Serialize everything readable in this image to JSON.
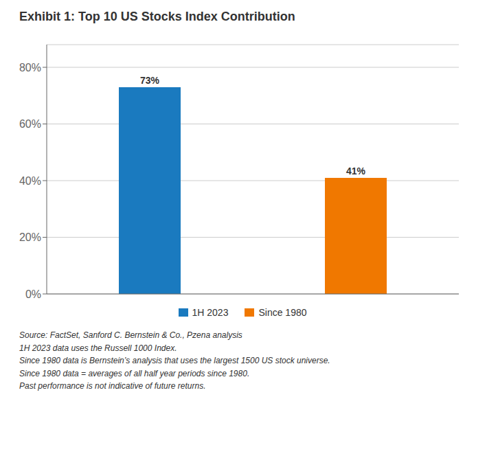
{
  "chart_data": {
    "type": "bar",
    "title": "Exhibit 1: Top 10 US Stocks Index Contribution",
    "categories": [
      "1H 2023",
      "Since 1980"
    ],
    "values": [
      0.73,
      0.41
    ],
    "value_labels": [
      "73%",
      "41%"
    ],
    "data_labels": true,
    "colors": [
      "#1a7abf",
      "#f07800"
    ],
    "ylim": [
      0,
      0.88
    ],
    "yticks": [
      {
        "value": 0.0,
        "label": "0%"
      },
      {
        "value": 0.2,
        "label": "20%"
      },
      {
        "value": 0.4,
        "label": "40%"
      },
      {
        "value": 0.6,
        "label": "60%"
      },
      {
        "value": 0.8,
        "label": "80%"
      }
    ],
    "grid": true,
    "legend": "bottom",
    "tick_labels": "y",
    "footnote": "Source: FactSet, Sanford C. Bernstein & Co., Pzena analysis\n1H 2023 data uses the Russell 1000 Index.\nSince 1980 data is Bernstein’s analysis that uses the largest 1500 US stock universe.\nSince 1980 data = averages of all half year periods since 1980.\nPast performance is not indicative of future returns."
  }
}
